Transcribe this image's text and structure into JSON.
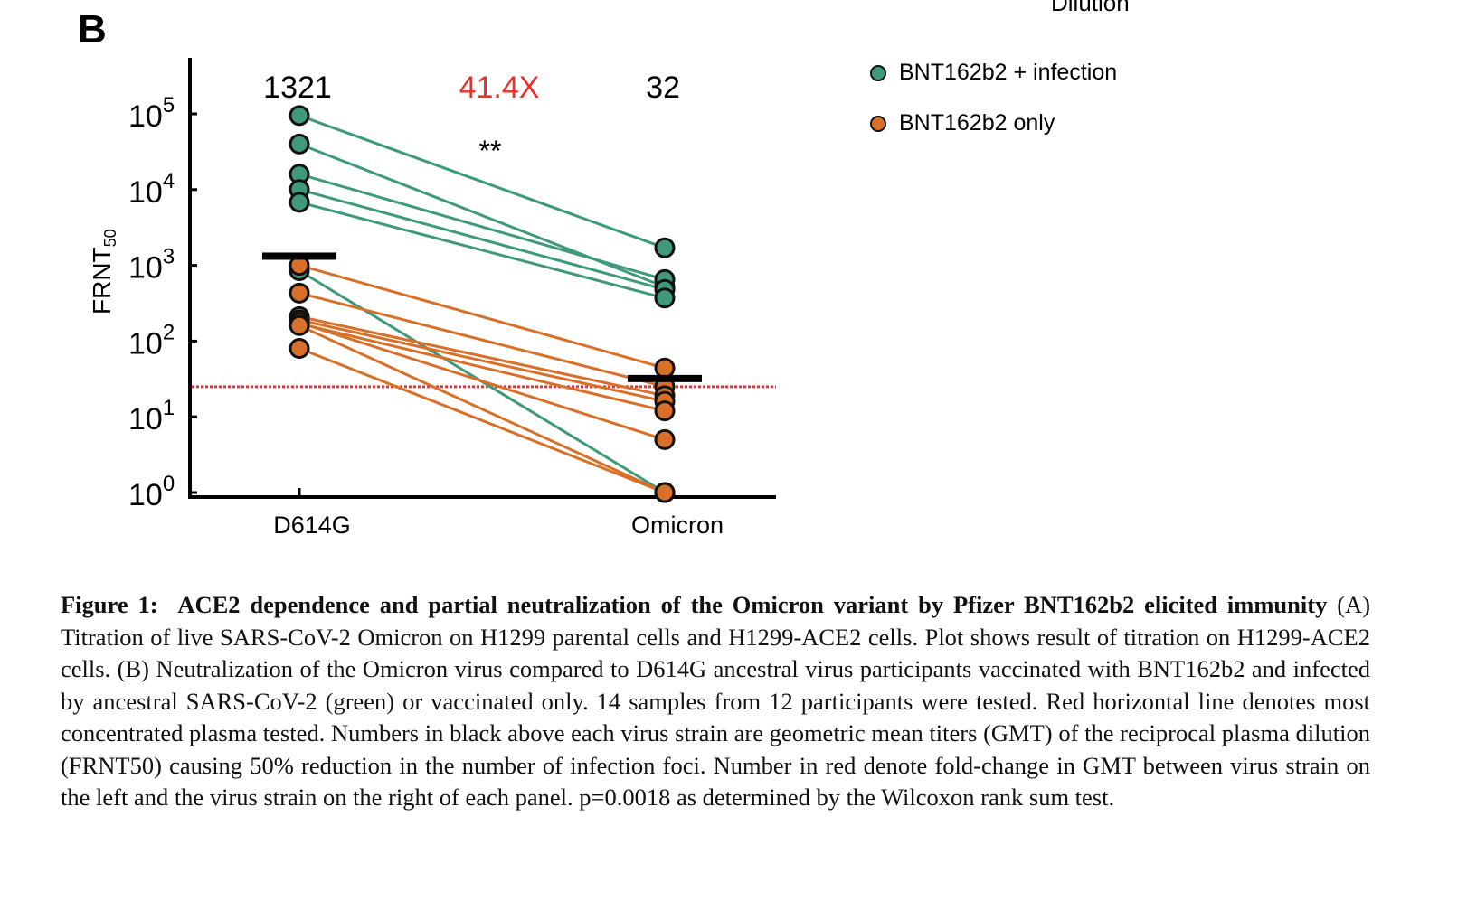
{
  "figure": {
    "panel_label": "B",
    "cut_off_heading": "Dilution"
  },
  "chart_data": {
    "type": "scatter",
    "subtype": "paired dot plot",
    "title": "",
    "xlabel": "",
    "ylabel": "FRNT",
    "ylabel_subscript": "50",
    "yscale": "log",
    "ylim": [
      1,
      300000
    ],
    "yticks": [
      {
        "base": "10",
        "exp": "0",
        "value": 1
      },
      {
        "base": "10",
        "exp": "1",
        "value": 10
      },
      {
        "base": "10",
        "exp": "2",
        "value": 100
      },
      {
        "base": "10",
        "exp": "3",
        "value": 1000
      },
      {
        "base": "10",
        "exp": "4",
        "value": 10000
      },
      {
        "base": "10",
        "exp": "5",
        "value": 100000
      }
    ],
    "categories": [
      "D614G",
      "Omicron"
    ],
    "gmt_labels": [
      "1321",
      "32"
    ],
    "gmt_values": [
      1321,
      32
    ],
    "fold_change_label": "41.4X",
    "significance_label": "**",
    "detection_limit": 25,
    "legend_position": "top-right",
    "series": [
      {
        "name": "BNT162b2 + infection",
        "color": "#3f9a7c",
        "pairs": [
          [
            95000,
            1700
          ],
          [
            40000,
            520
          ],
          [
            16000,
            650
          ],
          [
            10000,
            480
          ],
          [
            6800,
            370
          ],
          [
            850,
            1
          ]
        ]
      },
      {
        "name": "BNT162b2 only",
        "color": "#d8702a",
        "pairs": [
          [
            1000,
            44
          ],
          [
            430,
            25
          ],
          [
            210,
            19
          ],
          [
            190,
            16
          ],
          [
            170,
            12
          ],
          [
            175,
            5
          ],
          [
            160,
            1
          ],
          [
            80,
            1
          ]
        ]
      }
    ],
    "colors": {
      "gmt_bar": "#000000",
      "fold_change": "#e8312a",
      "detection_line": "#d93a3a"
    }
  },
  "caption": {
    "label": "Figure 1:",
    "title": "ACE2 dependence and partial neutralization of the Omicron variant by Pfizer BNT162b2 elicited immunity",
    "body": "(A) Titration of live SARS-CoV-2 Omicron on H1299 parental cells and H1299-ACE2 cells. Plot shows result of titration on H1299-ACE2 cells. (B) Neutralization of the Omicron virus compared to D614G ancestral virus participants vaccinated with BNT162b2 and infected by ancestral SARS-CoV-2 (green) or vaccinated only.  14 samples from 12 participants were tested.  Red horizontal line denotes most concentrated plasma tested. Numbers in black above each virus strain are geometric mean titers (GMT) of the reciprocal plasma dilution (FRNT50) causing 50% reduction in the number of infection foci. Number in red denote fold-change in GMT between virus strain on the left and the virus strain on the right of each panel. p=0.0018 as determined by the Wilcoxon rank sum test."
  }
}
